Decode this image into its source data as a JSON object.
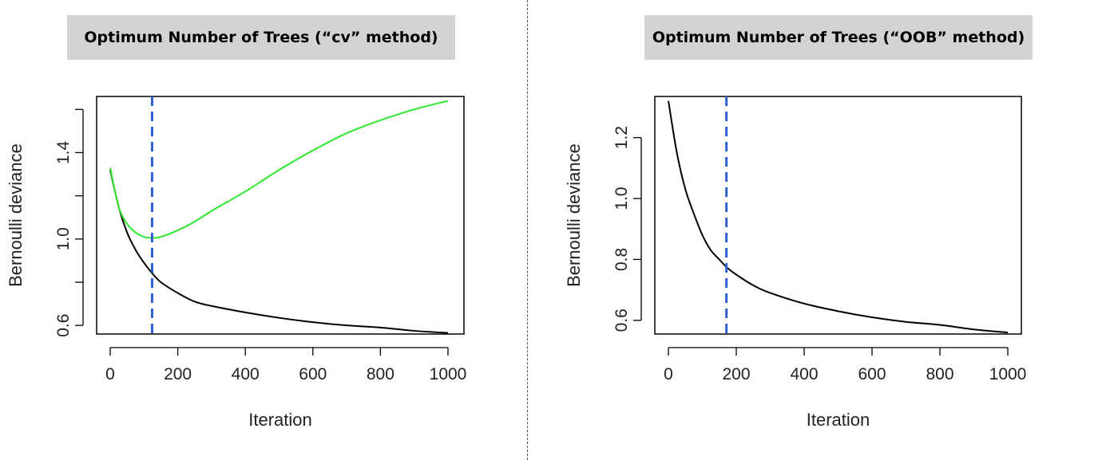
{
  "chart_data": [
    {
      "type": "line",
      "title": "Optimum Number of Trees (“cv” method)",
      "xlabel": "Iteration",
      "ylabel": "Bernoulli deviance",
      "xlim": [
        0,
        1000
      ],
      "ylim": [
        0.56,
        1.66
      ],
      "xticks": [
        0,
        200,
        400,
        600,
        800,
        1000
      ],
      "yticks": [
        0.6,
        1.0,
        1.4
      ],
      "ytick_labels": [
        "0.6",
        "1.0",
        "1.4"
      ],
      "ytick_marks": [
        0.6,
        0.8,
        1.0,
        1.2,
        1.4,
        1.6
      ],
      "grid": false,
      "colors": {
        "train": "#000000",
        "cv": "#2ee82e",
        "optimum": "#2f5fd0"
      },
      "optimum_iteration": 124,
      "series": [
        {
          "color": "#000000",
          "x": [
            0,
            25,
            50,
            75,
            100,
            125,
            150,
            200,
            250,
            300,
            400,
            500,
            600,
            700,
            800,
            900,
            1000
          ],
          "y": [
            1.32,
            1.15,
            1.03,
            0.95,
            0.89,
            0.84,
            0.8,
            0.75,
            0.71,
            0.69,
            0.66,
            0.635,
            0.615,
            0.6,
            0.59,
            0.575,
            0.565
          ]
        },
        {
          "color": "#2ee82e",
          "x": [
            0,
            25,
            50,
            75,
            100,
            125,
            150,
            200,
            250,
            300,
            400,
            500,
            600,
            700,
            800,
            900,
            1000
          ],
          "y": [
            1.33,
            1.15,
            1.07,
            1.03,
            1.01,
            1.005,
            1.01,
            1.04,
            1.08,
            1.13,
            1.22,
            1.32,
            1.41,
            1.49,
            1.55,
            1.6,
            1.64
          ]
        }
      ]
    },
    {
      "type": "line",
      "title": "Optimum Number of Trees (“OOB” method)",
      "xlabel": "Iteration",
      "ylabel": "Bernoulli deviance",
      "xlim": [
        0,
        1000
      ],
      "ylim": [
        0.555,
        1.335
      ],
      "xticks": [
        0,
        200,
        400,
        600,
        800,
        1000
      ],
      "yticks": [
        0.6,
        0.8,
        1.0,
        1.2
      ],
      "ytick_labels": [
        "0.6",
        "0.8",
        "1.0",
        "1.2"
      ],
      "ytick_marks": [
        0.6,
        0.8,
        1.0,
        1.2
      ],
      "grid": false,
      "colors": {
        "train": "#000000",
        "optimum": "#2f5fd0"
      },
      "optimum_iteration": 171,
      "series": [
        {
          "color": "#000000",
          "x": [
            0,
            25,
            50,
            75,
            100,
            125,
            150,
            171,
            200,
            250,
            300,
            400,
            500,
            600,
            700,
            800,
            900,
            1000
          ],
          "y": [
            1.32,
            1.15,
            1.03,
            0.95,
            0.88,
            0.83,
            0.8,
            0.775,
            0.75,
            0.715,
            0.69,
            0.655,
            0.63,
            0.61,
            0.595,
            0.585,
            0.57,
            0.56
          ]
        }
      ]
    }
  ]
}
